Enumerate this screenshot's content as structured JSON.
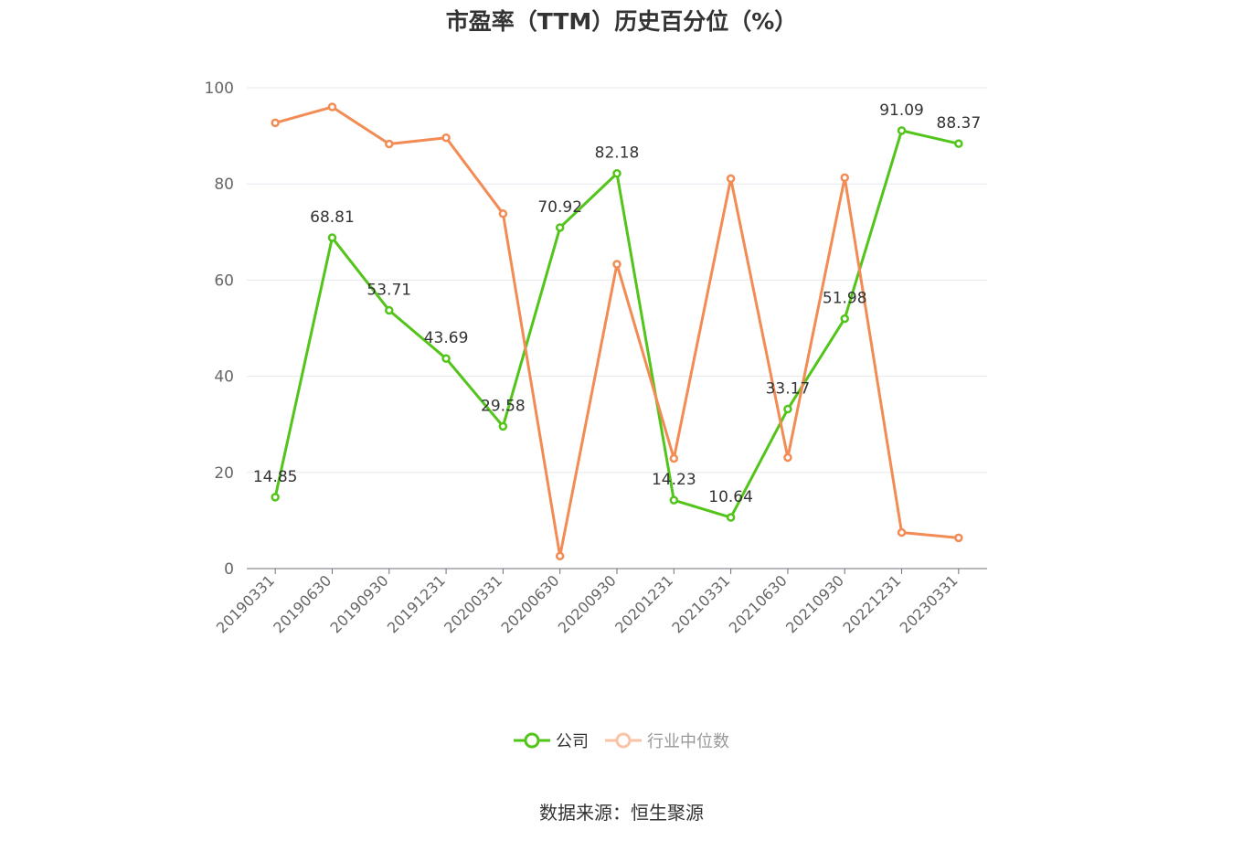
{
  "chart_data": {
    "type": "line",
    "title": "市盈率（TTM）历史百分位（%）",
    "categories": [
      "20190331",
      "20190630",
      "20190930",
      "20191231",
      "20200331",
      "20200630",
      "20200930",
      "20201231",
      "20210331",
      "20210630",
      "20210930",
      "20221231",
      "20230331"
    ],
    "ylim": [
      0,
      100
    ],
    "yticks": [
      0,
      20,
      40,
      60,
      80,
      100
    ],
    "grid": true,
    "legend_position": "bottom",
    "series": [
      {
        "name": "公司",
        "color": "#52c41a",
        "values": [
          14.85,
          68.81,
          53.71,
          43.69,
          29.58,
          70.92,
          82.18,
          14.23,
          10.64,
          33.17,
          51.98,
          91.09,
          88.37
        ],
        "labels": [
          "14.85",
          "68.81",
          "53.71",
          "43.69",
          "29.58",
          "70.92",
          "82.18",
          "14.23",
          "10.64",
          "33.17",
          "51.98",
          "91.09",
          "88.37"
        ]
      },
      {
        "name": "行业中位数",
        "color": "#f28b54",
        "values": [
          92.7,
          96.0,
          88.3,
          89.6,
          73.8,
          2.6,
          63.3,
          22.9,
          81.1,
          23.1,
          81.3,
          7.5,
          6.4
        ]
      }
    ]
  },
  "legend": {
    "company": "公司",
    "industry": "行业中位数"
  },
  "source": "数据来源：恒生聚源"
}
